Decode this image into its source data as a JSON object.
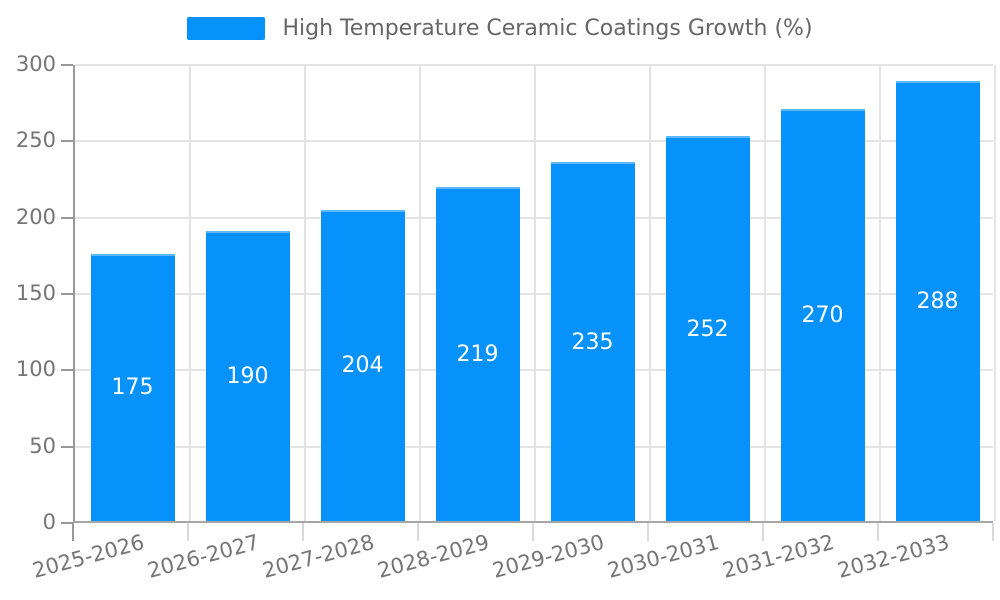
{
  "chart_data": {
    "type": "bar",
    "title": "",
    "categories": [
      "2025-2026",
      "2026-2027",
      "2027-2028",
      "2028-2029",
      "2029-2030",
      "2030-2031",
      "2031-2032",
      "2032-2033"
    ],
    "series": [
      {
        "name": "High Temperature Ceramic Coatings Growth (%)",
        "values": [
          175,
          190,
          204,
          219,
          235,
          252,
          270,
          288
        ]
      }
    ],
    "xlabel": "",
    "ylabel": "",
    "ylim": [
      0,
      300
    ],
    "yticks": [
      0,
      50,
      100,
      150,
      200,
      250,
      300
    ],
    "grid": true,
    "legend_position": "top-center",
    "value_labels": "inside-center",
    "colors": {
      "bar": "#0791fa",
      "value_text": "#ffffff",
      "grid": "#e4e4e4",
      "axis": "#999999",
      "tick_text": "#757575",
      "legend_text": "#666666"
    }
  }
}
